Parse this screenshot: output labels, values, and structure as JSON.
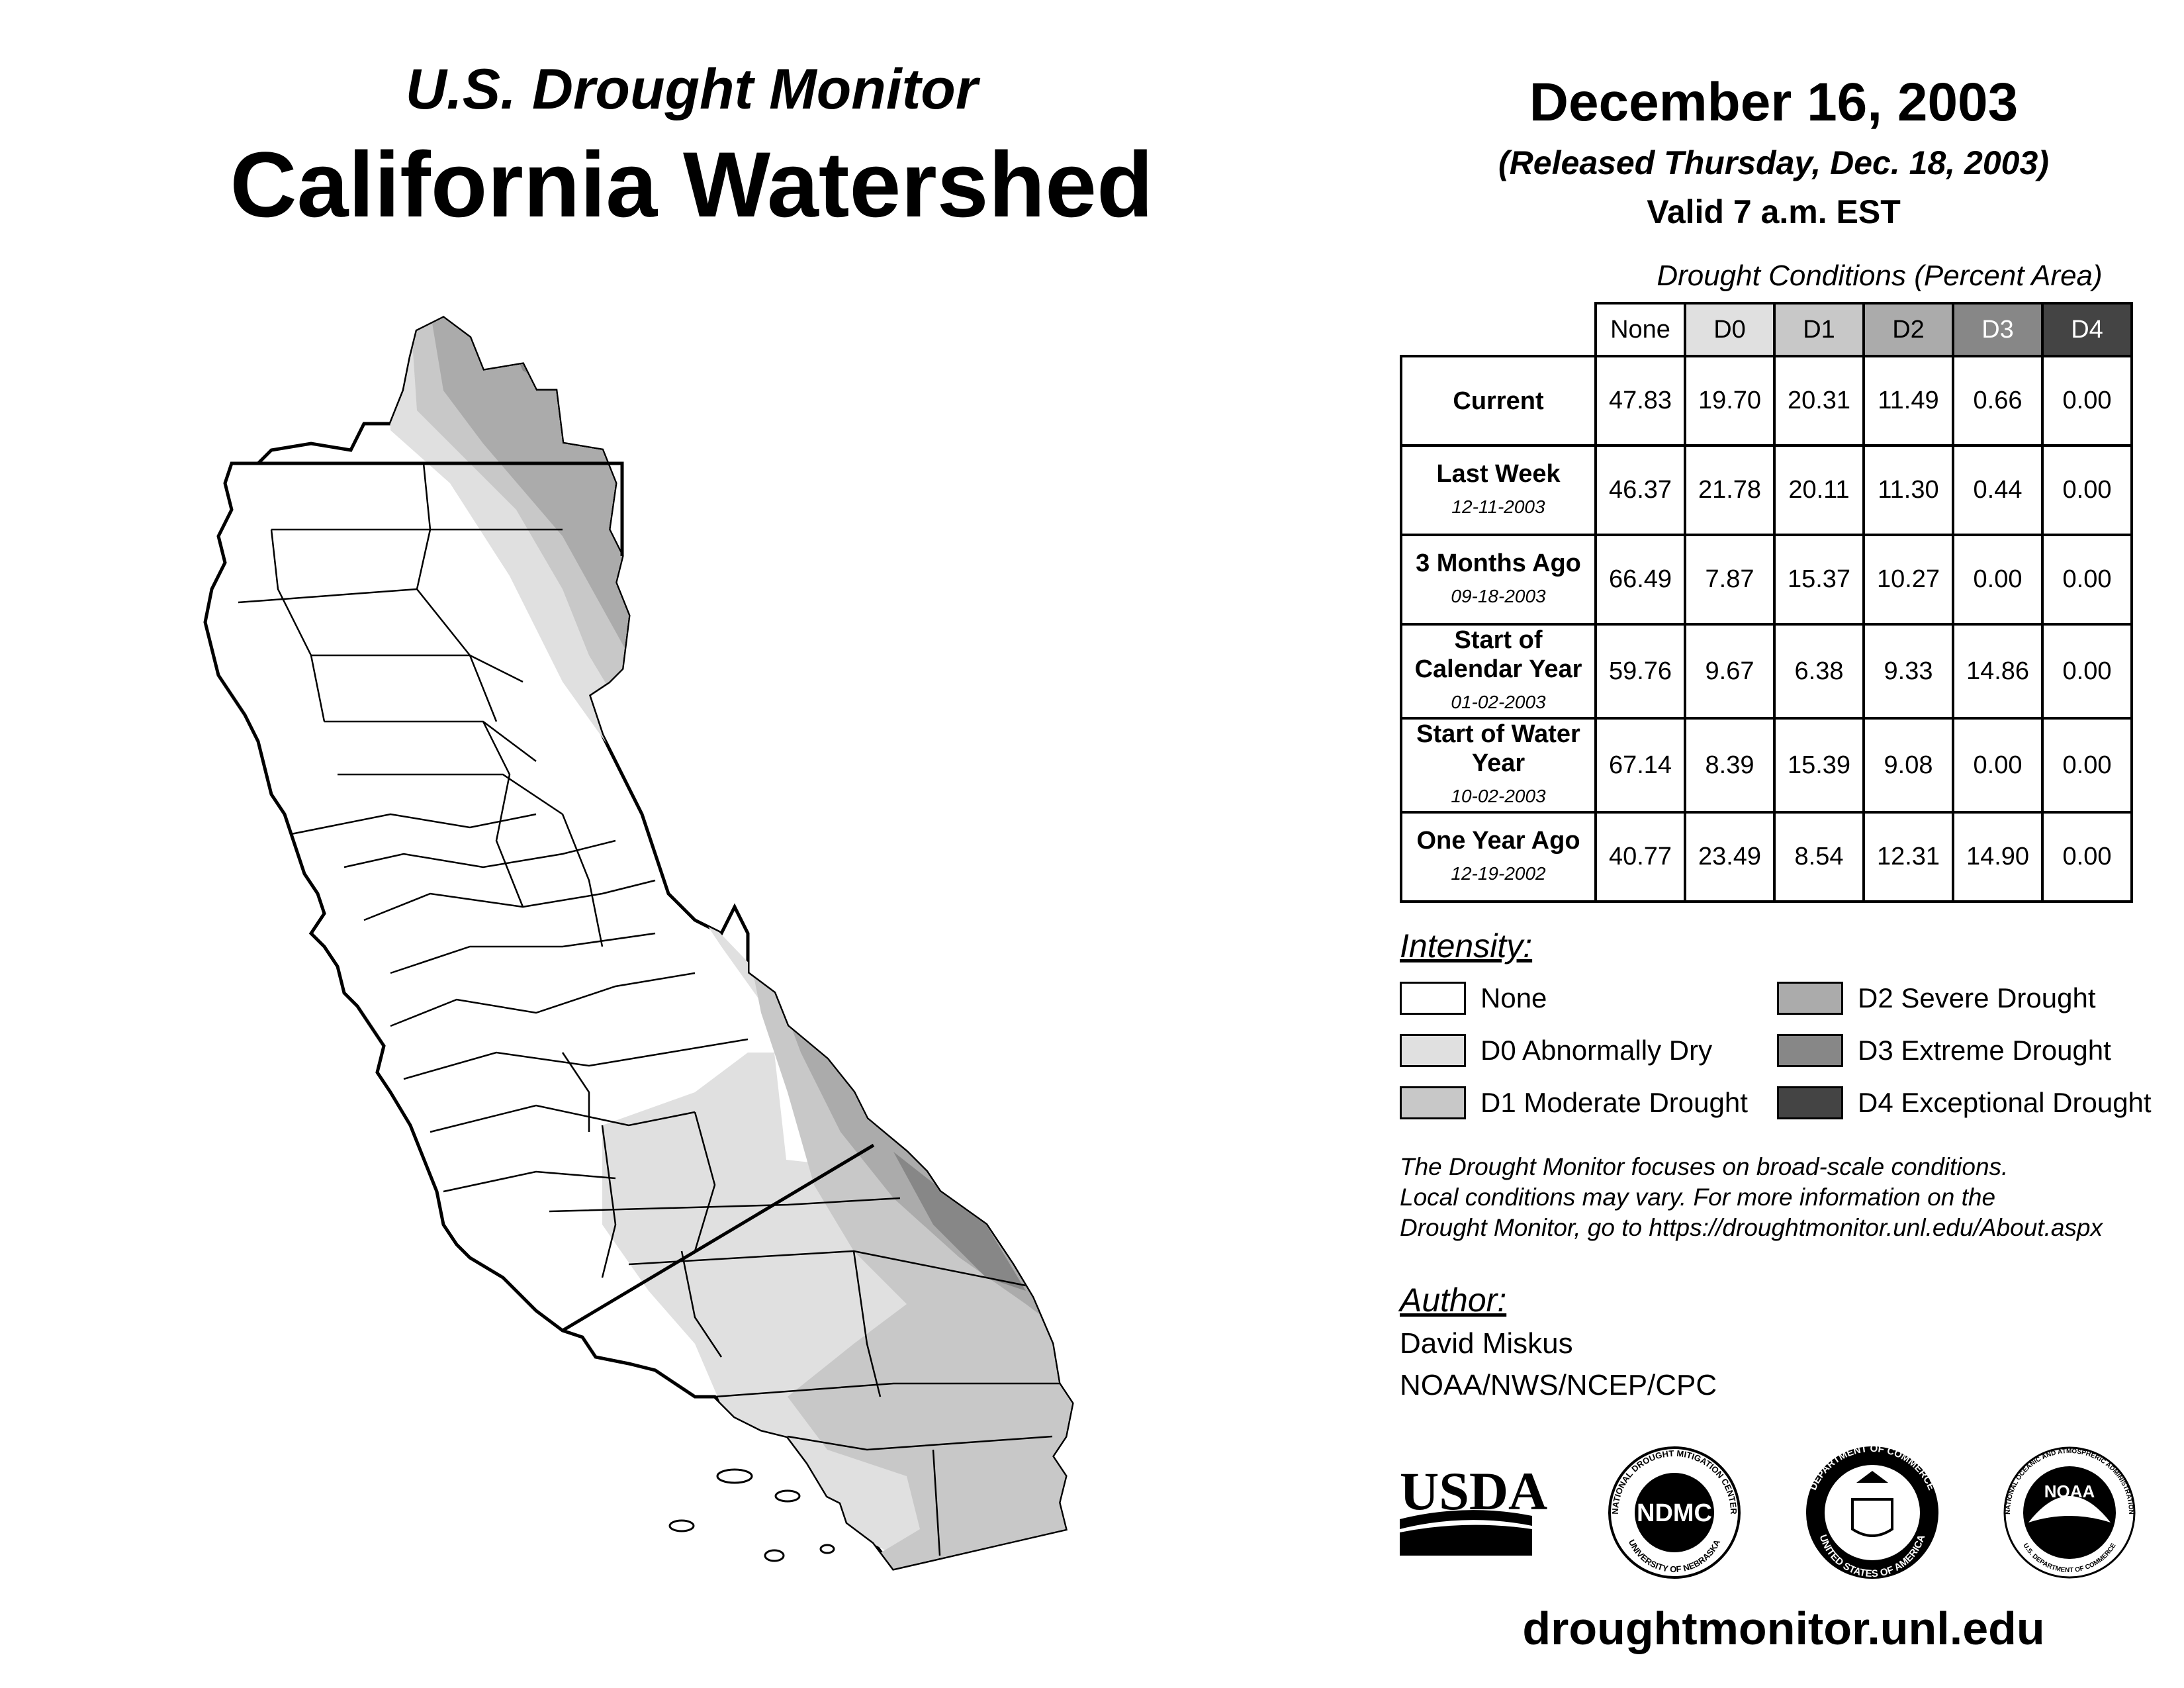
{
  "header": {
    "subtitle": "U.S. Drought Monitor",
    "title": "California Watershed",
    "date": "December 16, 2003",
    "released": "(Released Thursday, Dec. 18, 2003)",
    "valid": "Valid 7 a.m. EST"
  },
  "table": {
    "caption": "Drought Conditions (Percent Area)",
    "columns": [
      "None",
      "D0",
      "D1",
      "D2",
      "D3",
      "D4"
    ],
    "rows": [
      {
        "label": "Current",
        "date": "",
        "values": [
          "47.83",
          "19.70",
          "20.31",
          "11.49",
          "0.66",
          "0.00"
        ]
      },
      {
        "label": "Last Week",
        "date": "12-11-2003",
        "values": [
          "46.37",
          "21.78",
          "20.11",
          "11.30",
          "0.44",
          "0.00"
        ]
      },
      {
        "label": "3 Months Ago",
        "date": "09-18-2003",
        "values": [
          "66.49",
          "7.87",
          "15.37",
          "10.27",
          "0.00",
          "0.00"
        ]
      },
      {
        "label": "Start of Calendar Year",
        "date": "01-02-2003",
        "values": [
          "59.76",
          "9.67",
          "6.38",
          "9.33",
          "14.86",
          "0.00"
        ]
      },
      {
        "label": "Start of Water Year",
        "date": "10-02-2003",
        "values": [
          "67.14",
          "8.39",
          "15.39",
          "9.08",
          "0.00",
          "0.00"
        ]
      },
      {
        "label": "One Year Ago",
        "date": "12-19-2002",
        "values": [
          "40.77",
          "23.49",
          "8.54",
          "12.31",
          "14.90",
          "0.00"
        ]
      }
    ]
  },
  "legend": {
    "title": "Intensity:",
    "items": [
      {
        "label": "None",
        "color": "#ffffff"
      },
      {
        "label": "D0 Abnormally Dry",
        "color": "#e0e0e0"
      },
      {
        "label": "D1 Moderate Drought",
        "color": "#c8c8c8"
      },
      {
        "label": "D2 Severe Drought",
        "color": "#ababab"
      },
      {
        "label": "D3 Extreme Drought",
        "color": "#878787"
      },
      {
        "label": "D4 Exceptional Drought",
        "color": "#444444"
      }
    ]
  },
  "note": {
    "line1": "The Drought Monitor focuses on broad-scale conditions.",
    "line2": "Local conditions may vary. For more information on the",
    "line3": "Drought Monitor, go to https://droughtmonitor.unl.edu/About.aspx"
  },
  "author": {
    "title": "Author:",
    "name": "David Miskus",
    "org": "NOAA/NWS/NCEP/CPC"
  },
  "logos": {
    "usda": "USDA",
    "ndmc": "NDMC",
    "ndmc_ring_top": "NATIONAL DROUGHT MITIGATION CENTER",
    "ndmc_ring_bottom": "UNIVERSITY OF NEBRASKA",
    "doc_ring_top": "DEPARTMENT OF COMMERCE",
    "doc_ring_bottom": "UNITED STATES OF AMERICA",
    "noaa": "NOAA",
    "noaa_ring_top": "NATIONAL OCEANIC AND ATMOSPHERIC ADMINISTRATION",
    "noaa_ring_bottom": "U.S. DEPARTMENT OF COMMERCE"
  },
  "footer": {
    "url": "droughtmonitor.unl.edu"
  }
}
